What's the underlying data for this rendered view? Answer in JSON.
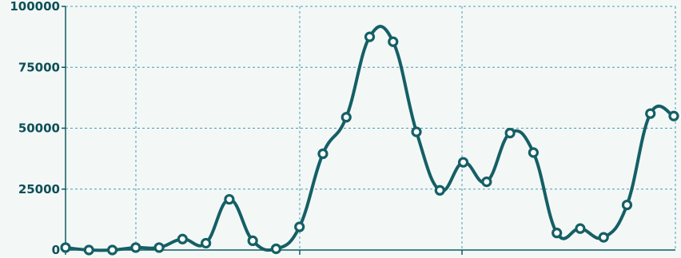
{
  "chart_data": {
    "type": "line",
    "title": "",
    "xlabel": "",
    "ylabel": "",
    "ylim": [
      0,
      100000
    ],
    "yticks": [
      0,
      25000,
      50000,
      75000,
      100000
    ],
    "ytick_labels": [
      "0",
      "25000",
      "50000",
      "75000",
      "100000"
    ],
    "smooth": true,
    "grid": true,
    "series": [
      {
        "color": "#155f66",
        "values": [
          1000,
          0,
          0,
          1000,
          1000,
          4500,
          2800,
          20800,
          3800,
          500,
          9500,
          39500,
          54500,
          87500,
          85500,
          48500,
          24500,
          36000,
          28000,
          48000,
          40000,
          7000,
          8800,
          5200,
          18500,
          56000,
          55000
        ]
      }
    ]
  }
}
